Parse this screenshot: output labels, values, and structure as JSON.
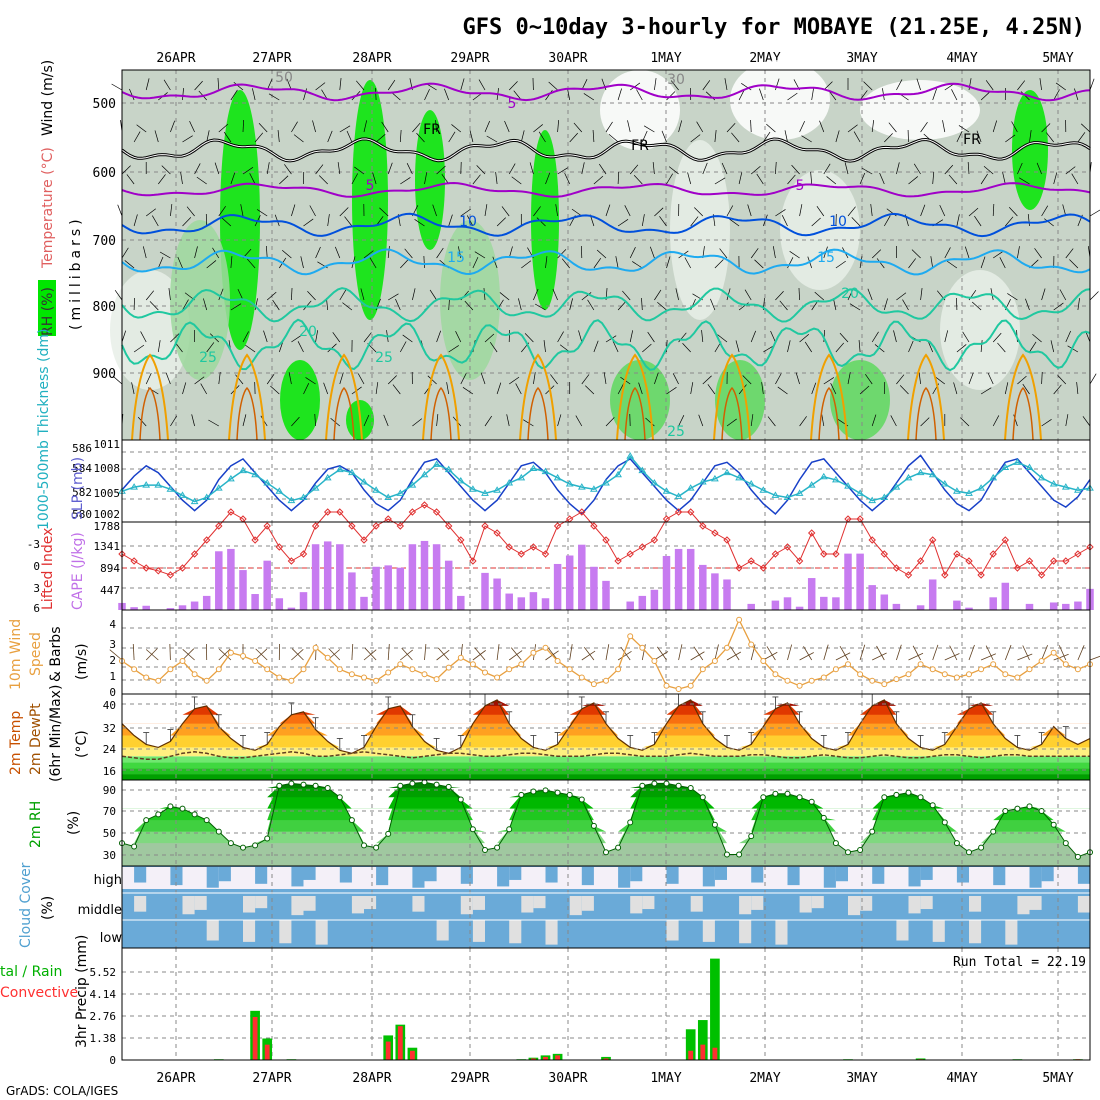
{
  "title": "GFS 0~10day 3-hourly for MOBAYE (21.25E, 4.25N)",
  "footer": "GrADS: COLA/IGES",
  "dates": [
    "26APR",
    "27APR",
    "28APR",
    "29APR",
    "30APR",
    "1MAY",
    "2MAY",
    "3MAY",
    "4MAY",
    "5MAY"
  ],
  "colors": {
    "rh_light": "#c8d4c8",
    "rh_green": "#00e600",
    "green_dark": "#00a000",
    "purple": "#a000c8",
    "blue": "#0050dc",
    "sky": "#1eaaf0",
    "teal": "#20c8a0",
    "orange": "#f0a000",
    "magenta": "#ff00c0",
    "cape": "#c77bf0",
    "li": "#e03030",
    "wind": "#e8a040",
    "cloud": "#6aaad8",
    "rain": "#00c000",
    "conv": "#ff3030"
  },
  "panels": {
    "upper": {
      "ylabel_wind": "Wind (m/s)",
      "ylabel_temp": "Temperature (°C)",
      "ylabel_rh": "RH (%)",
      "ylabel_pres": "(millibars)",
      "yticks": [
        "500",
        "600",
        "700",
        "800",
        "900"
      ],
      "contour_labels": [
        "5",
        "5",
        "5",
        "10",
        "10",
        "15",
        "15",
        "20",
        "20",
        "25",
        "25",
        "25",
        "FR",
        "FR",
        "FR",
        "50",
        "30"
      ]
    },
    "slp": {
      "ylabel_left": "1000-500mb Thickness (dm)",
      "ylabel_right": "SLP (mb)",
      "yticks_left": [
        "586",
        "584",
        "582",
        "580"
      ],
      "yticks_right": [
        "1011",
        "1008",
        "1005",
        "1002"
      ]
    },
    "cape": {
      "ylabel_left": "Lifted Index",
      "ylabel_right": "CAPE (J/kg)",
      "yticks_left": [
        "-3",
        "0",
        "3",
        "6"
      ],
      "yticks_right": [
        "1788",
        "1341",
        "894",
        "447"
      ]
    },
    "wind": {
      "ylabel1": "10m Wind",
      "ylabel2": "Speed",
      "ylabel3": "& Barbs",
      "ylabel_unit": "(m/s)",
      "yticks": [
        "4",
        "3",
        "2",
        "1",
        "0"
      ]
    },
    "temp": {
      "ylabel1": "2m Temp",
      "ylabel2": "2m DewPt",
      "ylabel3": "(6hr Min/Max)",
      "ylabel_unit": "(°C)",
      "yticks": [
        "40",
        "32",
        "24",
        "16"
      ]
    },
    "rh": {
      "ylabel": "2m RH",
      "ylabel_unit": "(%)",
      "yticks": [
        "90",
        "70",
        "50",
        "30"
      ]
    },
    "cloud": {
      "ylabel": "Cloud Cover",
      "ylabel_unit": "(%)",
      "levels": [
        "high",
        "middle",
        "low"
      ]
    },
    "precip": {
      "ylabel1": "tal / Rain",
      "ylabel2": "Convective",
      "ylabel3": "3hr Precip (mm)",
      "yticks": [
        "5.52",
        "4.14",
        "2.76",
        "1.38",
        "0"
      ],
      "run_total": "Run Total = 22.19"
    }
  },
  "chart_data": [
    {
      "type": "line",
      "name": "SLP / 1000-500mb thickness",
      "x_unit": "3-hourly steps from 25 Apr 18Z",
      "series": [
        {
          "name": "SLP (mb)",
          "values": [
            1005.5,
            1007.5,
            1009,
            1008,
            1006,
            1004,
            1002.5,
            1004,
            1007,
            1009,
            1010,
            1008,
            1006,
            1004,
            1002.5,
            1004,
            1006.5,
            1008.5,
            1009,
            1008,
            1005.5,
            1003.5,
            1002.5,
            1004,
            1007,
            1009.5,
            1010,
            1008,
            1006,
            1004,
            1002.5,
            1004,
            1006.5,
            1009,
            1009.5,
            1008,
            1005.5,
            1003.5,
            1002,
            1004,
            1007,
            1009,
            1010,
            1008,
            1006,
            1004,
            1002.5,
            1004,
            1006.5,
            1009,
            1009.5,
            1008,
            1005.5,
            1003.5,
            1002,
            1004,
            1007,
            1009.5,
            1010,
            1008,
            1006,
            1004,
            1002.5,
            1004,
            1006.5,
            1009,
            1010.5,
            1008,
            1005.5,
            1003.5,
            1002.5,
            1004,
            1007,
            1009.5,
            1010,
            1008,
            1006,
            1004,
            1003,
            1004.5,
            1007
          ]
        },
        {
          "name": "1000-500mb Thickness (dm)",
          "values": [
            582.2,
            582.6,
            582.8,
            582.8,
            582.4,
            581.8,
            581.2,
            581.6,
            582.5,
            583.4,
            584.2,
            583.8,
            583.0,
            582.2,
            581.3,
            581.6,
            582.5,
            583.5,
            584.3,
            584.0,
            583.1,
            582.3,
            581.6,
            582.0,
            582.8,
            583.8,
            584.8,
            584.3,
            583.2,
            582.4,
            582.0,
            582.3,
            583.0,
            583.5,
            584.4,
            584.1,
            583.5,
            582.9,
            582.6,
            582.4,
            583.0,
            583.8,
            585.6,
            584.2,
            583.0,
            582.2,
            581.7,
            582.5,
            583.1,
            583.4,
            584.0,
            583.5,
            582.9,
            582.3,
            581.8,
            581.6,
            582.0,
            582.8,
            583.6,
            583.3,
            582.7,
            582.0,
            581.3,
            581.6,
            582.6,
            583.5,
            584.0,
            583.8,
            582.9,
            582.2,
            582.0,
            582.5,
            583.5,
            584.5,
            585.0,
            584.5,
            583.5,
            582.9,
            582.6,
            582.3,
            582.5
          ]
        }
      ]
    },
    {
      "type": "bar",
      "name": "CAPE (J/kg) and Lifted Index",
      "series": [
        {
          "name": "CAPE (J/kg)",
          "values": [
            150,
            60,
            90,
            0,
            40,
            100,
            180,
            300,
            1250,
            1300,
            850,
            340,
            1050,
            250,
            50,
            380,
            1400,
            1460,
            1400,
            800,
            280,
            920,
            950,
            900,
            1400,
            1470,
            1400,
            1050,
            300,
            0,
            790,
            670,
            350,
            270,
            380,
            250,
            980,
            1160,
            1390,
            920,
            620,
            0,
            180,
            300,
            430,
            1150,
            1300,
            1300,
            960,
            780,
            650,
            0,
            130,
            0,
            200,
            270,
            70,
            680,
            280,
            270,
            1200,
            1200,
            530,
            330,
            130,
            0,
            100,
            650,
            0,
            200,
            50,
            0,
            270,
            580,
            0,
            130,
            0,
            160,
            130,
            180,
            450
          ]
        },
        {
          "name": "Lifted Index",
          "values": [
            -1,
            -0.5,
            0,
            0.2,
            0.5,
            0,
            -1,
            -2,
            -3,
            -4,
            -3.5,
            -2,
            -3,
            -1.5,
            -0.5,
            -1,
            -3,
            -4,
            -4,
            -3,
            -2,
            -3,
            -3.5,
            -3,
            -4,
            -4.5,
            -4,
            -3,
            -2,
            -0.5,
            -3,
            -2.5,
            -1.5,
            -1,
            -1.5,
            -1,
            -3,
            -3.5,
            -4,
            -3,
            -2,
            -0.5,
            -1,
            -1.5,
            -2,
            -3.5,
            -4,
            -4,
            -3,
            -2.5,
            -2,
            0,
            -0.5,
            0,
            -1,
            -1.5,
            -0.5,
            -2.5,
            -1,
            -1,
            -3.5,
            -3.5,
            -2,
            -1,
            0,
            0.5,
            -0.5,
            -2,
            0.5,
            -1,
            -0.5,
            0.5,
            -1,
            -2,
            0,
            -0.5,
            0.5,
            -0.5,
            -0.5,
            -1,
            -1.5
          ]
        }
      ]
    },
    {
      "type": "line",
      "name": "10m Wind Speed (m/s)",
      "series": [
        {
          "name": "10m Wind Speed",
          "values": [
            2,
            1.5,
            1,
            0.8,
            1.5,
            2,
            1.2,
            0.8,
            1.5,
            2.5,
            2.3,
            2,
            1.5,
            1,
            0.8,
            1.5,
            2.8,
            2.2,
            1.5,
            1.2,
            1,
            0.8,
            1.3,
            1.8,
            1.5,
            1.2,
            0.9,
            1.6,
            2.2,
            1.8,
            1.3,
            1,
            1.5,
            1.8,
            2.5,
            2.8,
            2,
            1.5,
            1,
            0.6,
            0.8,
            1.5,
            3.5,
            2.8,
            2,
            0.5,
            0.3,
            0.5,
            1.5,
            2,
            2.8,
            4.5,
            3,
            2,
            1.2,
            0.8,
            0.5,
            0.8,
            1,
            1.5,
            1.8,
            1.2,
            0.8,
            0.6,
            0.9,
            1.2,
            1.8,
            1.5,
            1.2,
            1,
            1.2,
            1.5,
            1.8,
            1.2,
            1,
            1.5,
            2,
            2.5,
            1.8,
            1.5,
            1.8
          ]
        }
      ]
    },
    {
      "type": "area",
      "name": "2m Temperature / Dew Point (°C)",
      "series": [
        {
          "name": "2m Temp",
          "values": [
            32,
            28,
            25,
            24,
            26,
            32,
            37,
            38,
            31,
            27,
            24,
            23,
            25,
            31,
            35,
            36,
            30,
            26,
            23,
            22,
            24,
            31,
            37,
            38,
            31,
            26,
            23,
            22,
            24,
            32,
            38,
            40,
            32,
            27,
            24,
            23,
            25,
            31,
            37,
            39,
            32,
            27,
            24,
            23,
            25,
            32,
            38,
            40,
            32,
            27,
            24,
            23,
            25,
            31,
            37,
            39,
            32,
            27,
            24,
            23,
            25,
            32,
            38,
            40,
            32,
            27,
            24,
            23,
            25,
            31,
            37,
            39,
            32,
            27,
            24,
            23,
            25,
            31,
            27,
            25,
            27
          ]
        },
        {
          "name": "2m DewPt",
          "values": [
            21,
            20.5,
            20,
            20,
            21,
            22,
            22.5,
            22,
            21,
            20.5,
            20.5,
            21,
            21.5,
            22,
            22.5,
            22,
            21,
            21,
            21.5,
            22,
            22.5,
            22,
            21.5,
            21,
            20.5,
            21,
            21.5,
            22,
            22,
            21.5,
            21,
            21,
            21.5,
            22,
            22,
            21.5,
            21,
            21,
            21,
            21.5,
            22,
            22,
            21.5,
            21,
            21,
            21,
            21.5,
            22,
            21.5,
            21,
            21,
            21,
            21.5,
            21.5,
            21,
            20.5,
            20.5,
            21,
            21.5,
            21,
            20.5,
            20.5,
            21,
            21.5,
            21,
            20.5,
            20.5,
            21,
            21.5,
            21.5,
            21,
            20.5,
            21,
            21.5,
            21.5,
            21,
            21,
            21,
            21,
            21,
            21
          ]
        }
      ]
    },
    {
      "type": "area",
      "name": "2m RH (%)",
      "series": [
        {
          "name": "2m RH",
          "values": [
            40,
            37,
            60,
            65,
            72,
            70,
            65,
            60,
            50,
            40,
            36,
            38,
            44,
            90,
            92,
            91,
            90,
            88,
            80,
            60,
            38,
            36,
            48,
            90,
            92,
            93,
            91,
            89,
            78,
            52,
            34,
            36,
            52,
            82,
            85,
            86,
            84,
            82,
            78,
            55,
            32,
            36,
            58,
            90,
            92,
            92,
            90,
            88,
            80,
            56,
            30,
            30,
            46,
            80,
            83,
            83,
            80,
            76,
            62,
            40,
            32,
            34,
            50,
            80,
            82,
            84,
            80,
            73,
            58,
            40,
            32,
            36,
            50,
            68,
            70,
            72,
            68,
            56,
            40,
            28,
            32
          ]
        }
      ]
    },
    {
      "type": "bar",
      "name": "3hr Precip (mm)",
      "series": [
        {
          "name": "Total / Rain",
          "values": [
            0,
            0,
            0,
            0,
            0,
            0,
            0,
            0,
            0.05,
            0,
            0,
            3.2,
            1.4,
            0,
            0.05,
            0,
            0,
            0,
            0,
            0,
            0,
            0,
            1.6,
            2.3,
            0.8,
            0,
            0,
            0,
            0,
            0,
            0,
            0,
            0,
            0.05,
            0.15,
            0.3,
            0.4,
            0,
            0,
            0,
            0.2,
            0,
            0,
            0,
            0,
            0,
            0,
            2.0,
            2.6,
            6.6,
            0,
            0,
            0,
            0,
            0,
            0,
            0,
            0,
            0,
            0,
            0.05,
            0,
            0,
            0,
            0,
            0,
            0.1,
            0,
            0,
            0,
            0,
            0,
            0,
            0,
            0.05,
            0,
            0,
            0,
            0,
            0.05,
            0
          ]
        },
        {
          "name": "Convective",
          "values": [
            0,
            0,
            0,
            0,
            0,
            0,
            0,
            0,
            0,
            0,
            0,
            2.8,
            1,
            0,
            0,
            0,
            0,
            0,
            0,
            0,
            0,
            0,
            1.2,
            2.2,
            0.6,
            0,
            0,
            0,
            0,
            0,
            0,
            0,
            0,
            0,
            0.1,
            0.2,
            0.3,
            0,
            0,
            0,
            0.1,
            0,
            0,
            0,
            0,
            0,
            0,
            0.6,
            1.0,
            0.8,
            0,
            0,
            0,
            0,
            0,
            0,
            0,
            0,
            0,
            0,
            0,
            0,
            0,
            0,
            0,
            0,
            0.05,
            0,
            0,
            0,
            0,
            0,
            0,
            0,
            0,
            0,
            0,
            0,
            0,
            0.05,
            0
          ]
        }
      ]
    }
  ]
}
